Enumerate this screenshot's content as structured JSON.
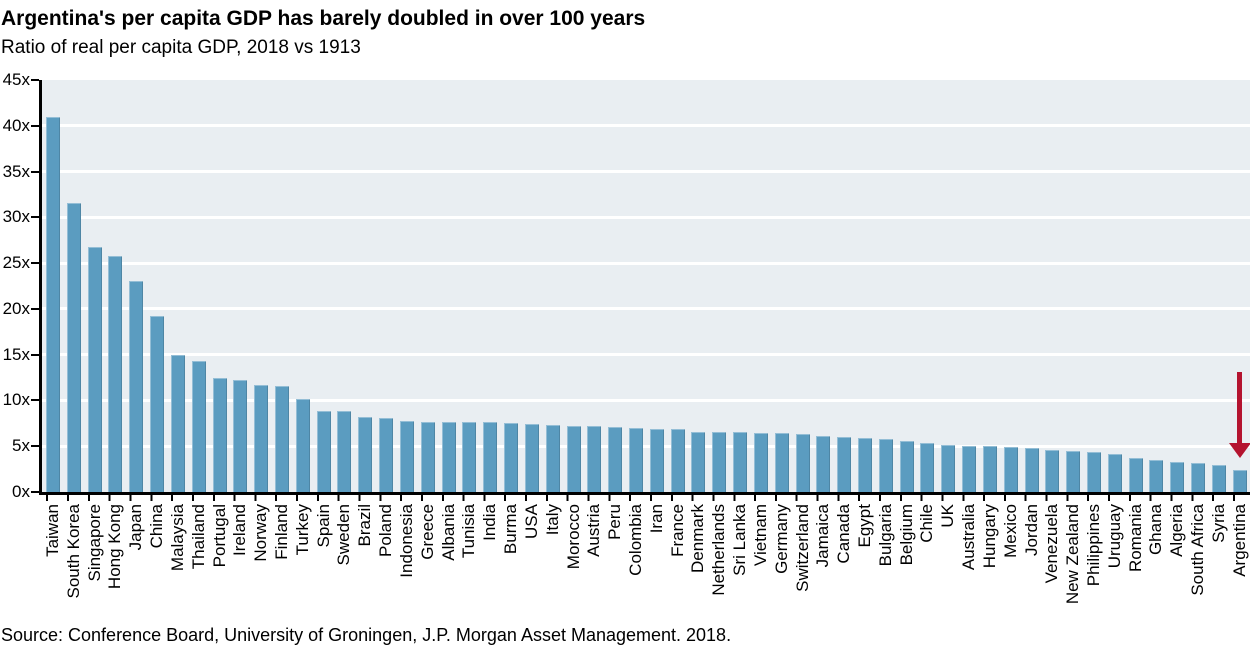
{
  "header": {
    "title": "Argentina's per capita GDP has barely doubled in over 100 years",
    "subtitle": "Ratio of real per capita GDP, 2018 vs 1913"
  },
  "footer": {
    "source": "Source: Conference Board, University of Groningen, J.P. Morgan Asset Management. 2018."
  },
  "colors": {
    "bar": "#5b9cc0",
    "plot_background": "#e9eef2",
    "gridline": "#ffffff",
    "axis": "#000000",
    "arrow": "#b4132f"
  },
  "chart_data": {
    "type": "bar",
    "title": "Argentina's per capita GDP has barely doubled in over 100 years",
    "subtitle": "Ratio of real per capita GDP, 2018 vs 1913",
    "xlabel": "",
    "ylabel": "",
    "ylim": [
      0,
      45
    ],
    "grid": true,
    "legend": false,
    "y_ticks": [
      {
        "value": 0,
        "label": "0x"
      },
      {
        "value": 5,
        "label": "5x"
      },
      {
        "value": 10,
        "label": "10x"
      },
      {
        "value": 15,
        "label": "15x"
      },
      {
        "value": 20,
        "label": "20x"
      },
      {
        "value": 25,
        "label": "25x"
      },
      {
        "value": 30,
        "label": "30x"
      },
      {
        "value": 35,
        "label": "35x"
      },
      {
        "value": 40,
        "label": "40x"
      },
      {
        "value": 45,
        "label": "45x"
      }
    ],
    "gridline_values": [
      5,
      10,
      15,
      20,
      25,
      30,
      35,
      40
    ],
    "categories": [
      "Taiwan",
      "South Korea",
      "Singapore",
      "Hong Kong",
      "Japan",
      "China",
      "Malaysia",
      "Thailand",
      "Portugal",
      "Ireland",
      "Norway",
      "Finland",
      "Turkey",
      "Spain",
      "Sweden",
      "Brazil",
      "Poland",
      "Indonesia",
      "Greece",
      "Albania",
      "Tunisia",
      "India",
      "Burma",
      "USA",
      "Italy",
      "Morocco",
      "Austria",
      "Peru",
      "Colombia",
      "Iran",
      "France",
      "Denmark",
      "Netherlands",
      "Sri Lanka",
      "Vietnam",
      "Germany",
      "Switzerland",
      "Jamaica",
      "Canada",
      "Egypt",
      "Bulgaria",
      "Belgium",
      "Chile",
      "UK",
      "Australia",
      "Hungary",
      "Mexico",
      "Jordan",
      "Venezuela",
      "New Zealand",
      "Philippines",
      "Uruguay",
      "Romania",
      "Ghana",
      "Algeria",
      "South Africa",
      "Syria",
      "Argentina"
    ],
    "values": [
      41.0,
      31.6,
      26.8,
      25.8,
      23.1,
      19.2,
      15.0,
      14.3,
      12.5,
      12.2,
      11.7,
      11.6,
      10.2,
      8.9,
      8.9,
      8.2,
      8.1,
      7.8,
      7.7,
      7.7,
      7.6,
      7.6,
      7.5,
      7.4,
      7.3,
      7.2,
      7.2,
      7.1,
      7.0,
      6.9,
      6.9,
      6.6,
      6.6,
      6.5,
      6.4,
      6.4,
      6.3,
      6.1,
      6.0,
      5.9,
      5.8,
      5.6,
      5.3,
      5.1,
      5.0,
      5.0,
      4.9,
      4.8,
      4.6,
      4.5,
      4.4,
      4.1,
      3.7,
      3.5,
      3.3,
      3.2,
      3.0,
      2.4
    ],
    "annotation": {
      "type": "down-arrow",
      "target": "Argentina"
    }
  }
}
